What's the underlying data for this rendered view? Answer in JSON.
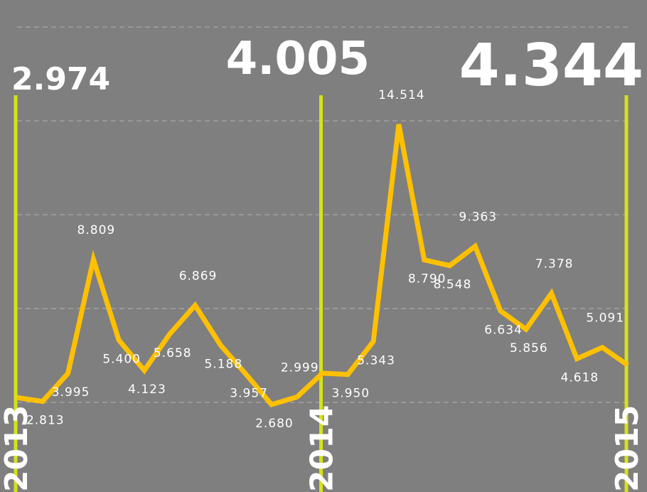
{
  "chart_data": {
    "type": "line",
    "grid": true,
    "ylim": [
      2,
      15.5
    ],
    "year_labels": [
      "2013",
      "2014",
      "2015"
    ],
    "highlights": [
      "2.974",
      "4.005",
      "4.344"
    ],
    "series": [
      {
        "color": "#ffc000",
        "values": [
          2.974,
          2.813,
          3.995,
          8.809,
          5.4,
          4.123,
          5.658,
          6.869,
          5.188,
          3.957,
          2.68,
          2.999,
          4.005,
          3.95,
          5.343,
          14.514,
          8.79,
          8.548,
          9.363,
          6.634,
          5.856,
          7.378,
          4.618,
          5.091,
          4.344
        ],
        "labels": [
          "",
          "2.813",
          "3.995",
          "8.809",
          "5.400",
          "4.123",
          "5.658",
          "6.869",
          "5.188",
          "3.957",
          "2.680",
          "2.999",
          "",
          "3.950",
          "5.343",
          "14.514",
          "8.790",
          "8.548",
          "9.363",
          "6.634",
          "5.856",
          "7.378",
          "4.618",
          "5.091",
          ""
        ]
      }
    ],
    "colors": {
      "background": "#7f7f7f",
      "series": "#ffc000",
      "year_marker": "#d4e21c",
      "grid": "#a6a6a6",
      "text": "#ffffff"
    }
  }
}
